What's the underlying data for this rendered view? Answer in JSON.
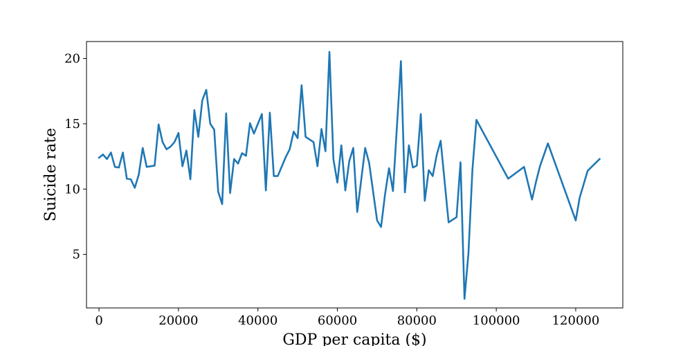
{
  "chart_data": {
    "type": "line",
    "title": "",
    "xlabel": "GDP per capita ($)",
    "ylabel": "Suicide rate",
    "xlim": [
      -3150,
      131850
    ],
    "ylim": [
      0.9,
      21.3
    ],
    "x_ticks": [
      0,
      20000,
      40000,
      60000,
      80000,
      100000,
      120000
    ],
    "x_tick_labels": [
      "0",
      "20000",
      "40000",
      "60000",
      "80000",
      "100000",
      "120000"
    ],
    "y_ticks": [
      5,
      10,
      15,
      20
    ],
    "y_tick_labels": [
      "5",
      "10",
      "15",
      "20"
    ],
    "grid": false,
    "legend": "none",
    "colors": {
      "line": "#1f77b4",
      "axes": "#000000",
      "background": "#ffffff"
    },
    "series": [
      {
        "x": [
          0,
          1000,
          2000,
          3000,
          4000,
          5000,
          6000,
          7000,
          8000,
          9000,
          10000,
          11000,
          12000,
          14000,
          15000,
          16000,
          17000,
          18000,
          19000,
          20000,
          21000,
          22000,
          23000,
          24000,
          25000,
          26000,
          27000,
          28000,
          29000,
          30000,
          31000,
          32000,
          33000,
          34000,
          35000,
          36000,
          37000,
          38000,
          39000,
          41000,
          42000,
          43000,
          44000,
          45000,
          47000,
          48000,
          49000,
          50000,
          51000,
          52000,
          54000,
          55000,
          56000,
          57000,
          58000,
          59000,
          60000,
          61000,
          62000,
          63000,
          64000,
          65000,
          67000,
          68000,
          70000,
          71000,
          72000,
          73000,
          74000,
          76000,
          77000,
          78000,
          79000,
          80000,
          81000,
          82000,
          83000,
          84000,
          85000,
          86000,
          88000,
          90000,
          91000,
          92000,
          93000,
          94000,
          95000,
          103000,
          107000,
          109000,
          110000,
          111000,
          113000,
          120000,
          121000,
          123000,
          126000
        ],
        "y": [
          12.4,
          12.65,
          12.3,
          12.8,
          11.7,
          11.65,
          12.8,
          10.8,
          10.75,
          10.1,
          11.1,
          13.15,
          11.7,
          11.8,
          14.95,
          13.6,
          13.05,
          13.25,
          13.6,
          14.3,
          11.75,
          12.95,
          10.75,
          16.05,
          14.0,
          16.8,
          17.6,
          15.0,
          14.55,
          9.8,
          8.85,
          15.8,
          9.7,
          12.3,
          11.95,
          12.75,
          12.55,
          15.05,
          14.25,
          15.75,
          9.9,
          15.85,
          11.0,
          11.0,
          12.45,
          13.05,
          14.4,
          13.9,
          17.95,
          14.0,
          13.6,
          11.75,
          14.6,
          12.9,
          20.5,
          12.3,
          10.5,
          13.35,
          9.9,
          12.15,
          13.15,
          8.25,
          13.15,
          12.0,
          7.6,
          7.1,
          9.6,
          11.6,
          9.85,
          19.8,
          9.75,
          13.35,
          11.65,
          11.8,
          15.75,
          9.1,
          11.45,
          11.0,
          12.6,
          13.7,
          7.45,
          7.85,
          12.05,
          1.6,
          5.1,
          11.5,
          15.3,
          10.8,
          11.7,
          9.2,
          10.55,
          11.75,
          13.5,
          7.6,
          9.35,
          11.4,
          12.3
        ]
      }
    ]
  }
}
